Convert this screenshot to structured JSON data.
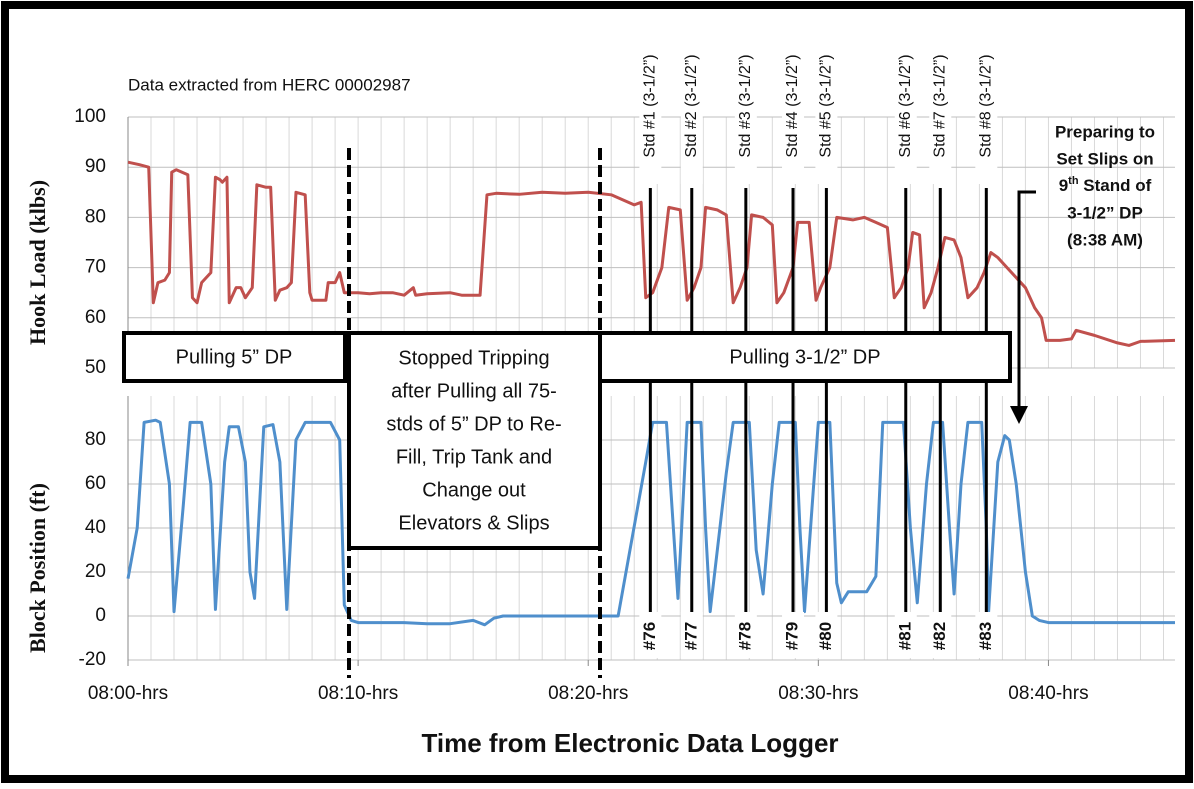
{
  "chart_data": [
    {
      "type": "line",
      "ylabel": "Hook Load (klbs)",
      "xlim": [
        0,
        45.5
      ],
      "ylim": [
        50,
        100
      ],
      "yticks": [
        50,
        60,
        70,
        80,
        90,
        100
      ],
      "grid": true,
      "series": [
        {
          "color": "#c0504d",
          "x": [
            0,
            0.5,
            0.9,
            1.1,
            1.3,
            1.6,
            1.8,
            1.9,
            2.1,
            2.6,
            2.8,
            3.0,
            3.2,
            3.6,
            3.8,
            4.0,
            4.1,
            4.3,
            4.4,
            4.7,
            4.9,
            5.1,
            5.4,
            5.6,
            6.0,
            6.2,
            6.4,
            6.6,
            6.9,
            7.1,
            7.3,
            7.7,
            7.9,
            8.0,
            8.6,
            8.7,
            9.0,
            9.2,
            9.4,
            10,
            10.5,
            11,
            11.5,
            12,
            12.4,
            12.5,
            13,
            14,
            14.5,
            15.3,
            15.6,
            16,
            17,
            18,
            19,
            20,
            21,
            22,
            22.3,
            22.5,
            22.8,
            23.2,
            23.5,
            24,
            24.3,
            24.6,
            24.9,
            25.1,
            25.6,
            26.0,
            26.3,
            26.6,
            26.9,
            27.1,
            27.6,
            28.0,
            28.2,
            28.5,
            28.9,
            29.1,
            29.6,
            29.9,
            30.1,
            30.5,
            30.8,
            31.5,
            32,
            32.5,
            33.0,
            33.3,
            33.6,
            33.9,
            34.1,
            34.4,
            34.6,
            34.9,
            35.2,
            35.5,
            35.9,
            36.2,
            36.5,
            36.9,
            37.2,
            37.5,
            37.8,
            38.2,
            38.6,
            39,
            39.4,
            39.7,
            39.9,
            40.5,
            41,
            41.2,
            42,
            43,
            43.5,
            44,
            45.5
          ],
          "values": [
            91,
            90.5,
            90,
            63,
            67,
            67.5,
            69,
            89,
            89.5,
            88.5,
            64,
            63,
            67,
            69,
            88,
            87.5,
            87,
            88,
            63,
            66,
            66,
            64,
            66,
            86.5,
            86,
            86,
            63.5,
            65.5,
            66,
            67,
            85,
            84.5,
            65,
            63.5,
            63.5,
            67,
            67,
            69,
            65,
            65,
            64.8,
            65,
            65,
            64.5,
            66,
            64.5,
            64.8,
            65,
            64.5,
            64.5,
            84.5,
            84.8,
            84.6,
            85,
            84.8,
            85,
            84.5,
            82.5,
            83,
            64,
            65,
            70,
            82,
            81.5,
            63.5,
            66,
            70,
            82,
            81.5,
            80.5,
            63,
            66,
            70,
            80.5,
            80,
            78.5,
            63,
            65,
            70,
            79,
            79,
            63.5,
            66,
            70,
            80,
            79.5,
            80,
            79,
            78,
            64,
            66,
            70,
            77,
            76.5,
            62,
            65,
            70,
            76,
            75.5,
            72,
            64,
            66,
            69,
            73,
            72,
            70,
            68,
            66,
            62,
            60,
            55.5,
            55.5,
            55.8,
            57.5,
            56.5,
            55,
            54.5,
            55.3,
            55.5
          ]
        }
      ],
      "annotations": {
        "source": "Data extracted from HERC 00002987",
        "stands": [
          "Std #1 (3-1/2”)",
          "Std #2 (3-1/2”)",
          "Std #3 (3-1/2”)",
          "Std #4 (3-1/2”)",
          "Std #5 (3-1/2”)",
          "Std #6 (3-1/2”)",
          "Std #7 (3-1/2”)",
          "Std #8 (3-1/2”)"
        ],
        "stand_numbers": [
          "#76",
          "#77",
          "#78",
          "#79",
          "#80",
          "#81",
          "#82",
          "#83"
        ],
        "pulling_5": "Pulling 5” DP",
        "pulling_35": "Pulling 3-1/2” DP",
        "stopped": [
          "Stopped Tripping",
          "after Pulling all 75-",
          "stds of 5” DP to Re-",
          "Fill, Trip Tank and",
          "Change out",
          "Elevators & Slips"
        ],
        "preparing": [
          "Preparing to",
          "Set Slips on",
          {
            "base": "9",
            "sup": "th",
            "rest": " Stand of"
          },
          "3-1/2” DP",
          "(8:38 AM)"
        ]
      }
    },
    {
      "type": "line",
      "ylabel": "Block Position (ft)",
      "xlabel": "Time from Electronic Data Logger",
      "xlim": [
        0,
        45.5
      ],
      "xticks": [
        {
          "value": 0,
          "label": "08:00-hrs"
        },
        {
          "value": 10,
          "label": "08:10-hrs"
        },
        {
          "value": 20,
          "label": "08:20-hrs"
        },
        {
          "value": 30,
          "label": "08:30-hrs"
        },
        {
          "value": 40,
          "label": "08:40-hrs"
        }
      ],
      "ylim": [
        -20,
        100
      ],
      "yticks": [
        -20,
        0,
        20,
        40,
        60,
        80
      ],
      "grid": true,
      "series": [
        {
          "color": "#4f8fcc",
          "x": [
            0,
            0.4,
            0.7,
            1.2,
            1.4,
            1.8,
            2.0,
            2.4,
            2.7,
            3.2,
            3.6,
            3.8,
            4.2,
            4.4,
            4.8,
            5.1,
            5.3,
            5.5,
            5.9,
            6.3,
            6.6,
            6.9,
            7.3,
            7.7,
            8.8,
            9.2,
            9.4,
            9.7,
            10,
            11,
            12,
            13,
            14,
            15,
            15.5,
            15.9,
            16.3,
            18,
            20,
            21,
            21.3,
            22.5,
            22.8,
            23.4,
            23.7,
            23.9,
            24.3,
            24.9,
            25.1,
            25.3,
            26.0,
            26.3,
            27.0,
            27.3,
            27.6,
            28.0,
            28.3,
            29.0,
            29.2,
            29.4,
            29.8,
            30.0,
            30.5,
            30.8,
            31.0,
            31.3,
            32.1,
            32.5,
            32.8,
            33.7,
            34.0,
            34.3,
            34.7,
            35.0,
            35.4,
            35.7,
            35.9,
            36.2,
            36.5,
            37.1,
            37.3,
            37.4,
            37.8,
            38.1,
            38.3,
            38.6,
            39.0,
            39.3,
            39.6,
            40,
            42,
            45.5
          ],
          "values": [
            17,
            40,
            88,
            89,
            88,
            60,
            2,
            50,
            88,
            88,
            60,
            3,
            70,
            86,
            86,
            70,
            20,
            8,
            86,
            87,
            70,
            3,
            80,
            88,
            88,
            80,
            5,
            -2,
            -3,
            -3,
            -3,
            -3.5,
            -3.5,
            -2,
            -4,
            -1,
            0,
            0,
            0,
            0,
            0,
            70,
            88,
            88,
            40,
            8,
            88,
            88,
            40,
            2,
            65,
            88,
            88,
            30,
            10,
            60,
            88,
            88,
            40,
            2,
            60,
            88,
            88,
            15,
            6,
            11,
            11,
            18,
            88,
            88,
            40,
            6,
            60,
            88,
            88,
            40,
            10,
            60,
            88,
            88,
            40,
            2,
            70,
            82,
            80,
            60,
            20,
            0,
            -2,
            -3,
            -3,
            -3
          ]
        }
      ]
    }
  ]
}
